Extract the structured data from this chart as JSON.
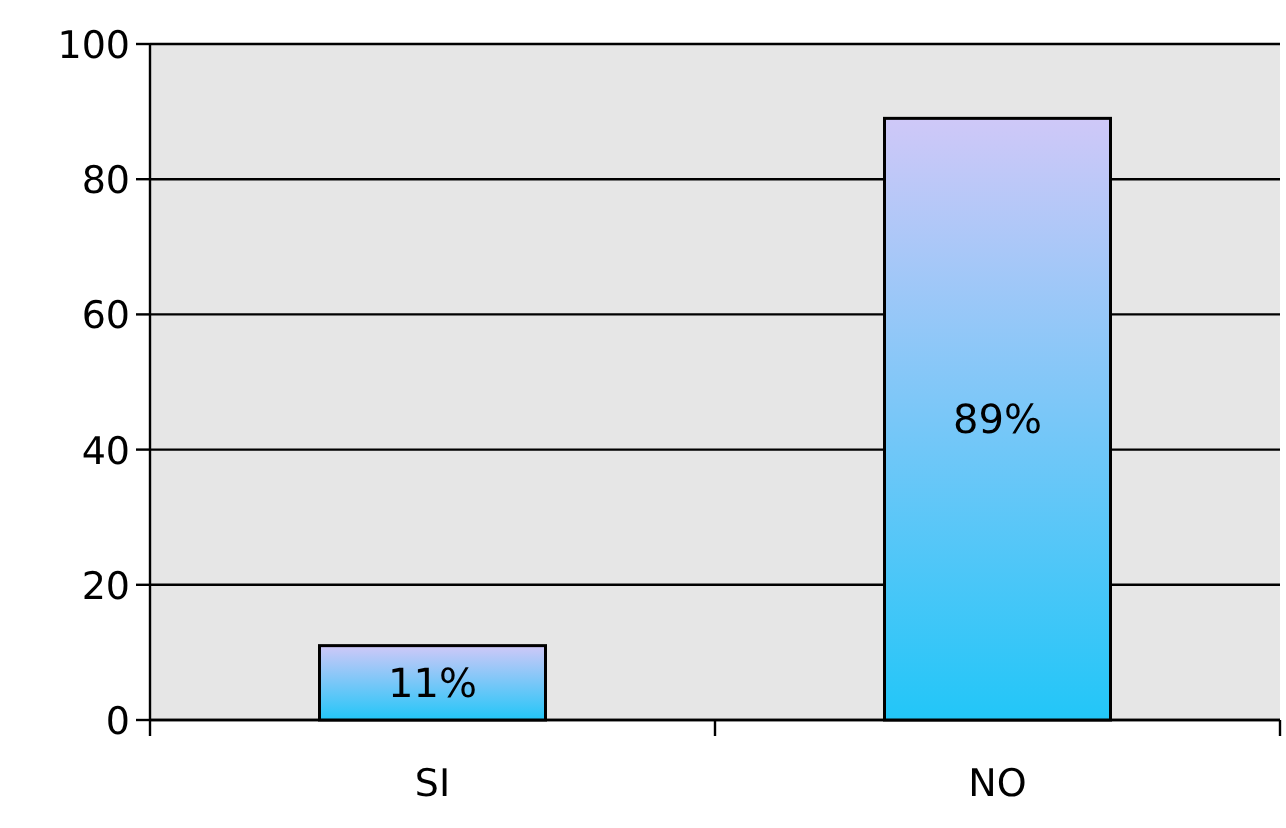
{
  "chart_data": {
    "type": "bar",
    "categories": [
      "SI",
      "NO"
    ],
    "values": [
      11,
      89
    ],
    "value_labels": [
      "11%",
      "89%"
    ],
    "color": "#22c6f8",
    "ylim": [
      0,
      100
    ],
    "yticks": [
      0,
      20,
      40,
      60,
      80,
      100
    ],
    "grid": "y"
  }
}
